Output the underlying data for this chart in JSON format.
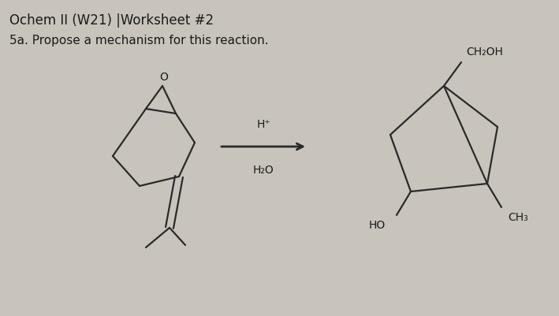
{
  "title_line1": "Ochem II (W21) |Worksheet #2",
  "title_line2": "5a. Propose a mechanism for this reaction.",
  "bg_color": "#c8c4bc",
  "text_color": "#1a1a1a",
  "arrow_above": "H⁺",
  "arrow_below": "H₂O",
  "font_size_title": 12,
  "font_size_subtitle": 11,
  "font_size_chem": 10,
  "line_color": "#2a2a2a",
  "line_width": 1.6
}
